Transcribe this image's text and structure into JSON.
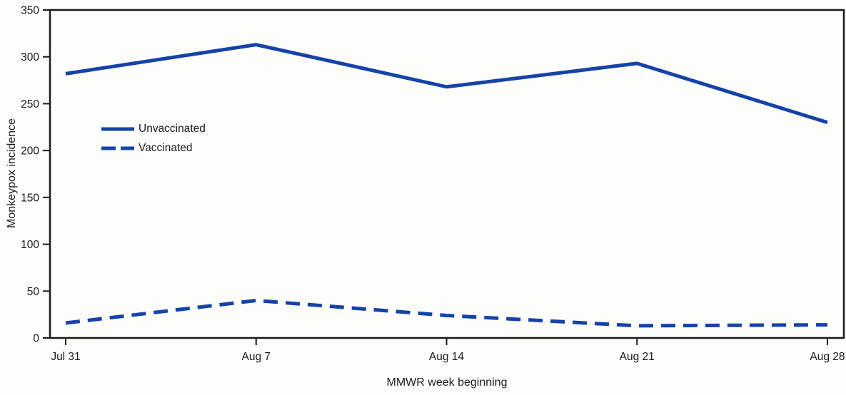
{
  "chart_data": {
    "type": "line",
    "title": "",
    "xlabel": "MMWR week beginning",
    "ylabel": "Monkeypox incidence",
    "categories": [
      "Jul 31",
      "Aug 7",
      "Aug 14",
      "Aug 21",
      "Aug 28"
    ],
    "series": [
      {
        "name": "Unvaccinated",
        "style": "solid",
        "values": [
          282,
          313,
          268,
          293,
          230
        ]
      },
      {
        "name": "Vaccinated",
        "style": "dashed",
        "values": [
          16,
          40,
          24,
          13,
          14
        ]
      }
    ],
    "y_ticks": [
      0,
      50,
      100,
      150,
      200,
      250,
      300,
      350
    ],
    "ylim": [
      0,
      350
    ],
    "grid": false,
    "legend_position": "upper-left-inside",
    "line_color": "#1543a8",
    "axis_color": "#1a1a1a",
    "background_color": "#fdfdfa"
  }
}
